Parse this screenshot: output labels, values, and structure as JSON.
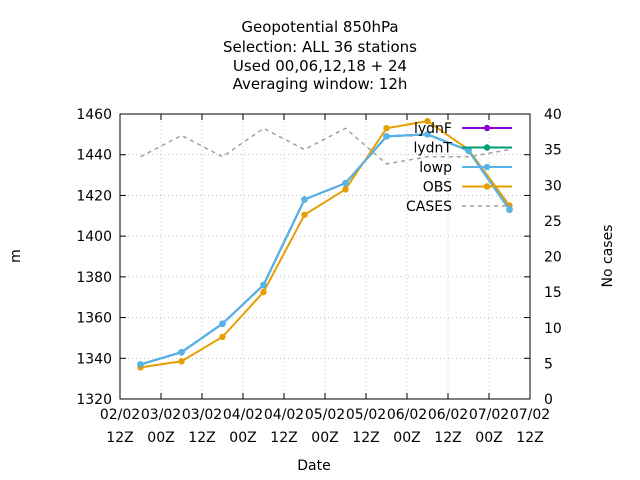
{
  "chart_data": {
    "type": "line",
    "title_lines": [
      "Geopotential 850hPa",
      "Selection: ALL      36 stations",
      "Used  00,06,12,18 + 24",
      "Averaging window: 12h"
    ],
    "xlabel": "Date",
    "ylabel": "m",
    "y2label": "No cases",
    "x_ticks": [
      {
        "line1": "02/02",
        "line2": "12Z"
      },
      {
        "line1": "03/02",
        "line2": "00Z"
      },
      {
        "line1": "03/02",
        "line2": "12Z"
      },
      {
        "line1": "04/02",
        "line2": "00Z"
      },
      {
        "line1": "04/02",
        "line2": "12Z"
      },
      {
        "line1": "05/02",
        "line2": "00Z"
      },
      {
        "line1": "05/02",
        "line2": "12Z"
      },
      {
        "line1": "06/02",
        "line2": "00Z"
      },
      {
        "line1": "06/02",
        "line2": "12Z"
      },
      {
        "line1": "07/02",
        "line2": "00Z"
      },
      {
        "line1": "07/02",
        "line2": "12Z"
      }
    ],
    "ylim": [
      1320,
      1460
    ],
    "yticks": [
      1320,
      1340,
      1360,
      1380,
      1400,
      1420,
      1440,
      1460
    ],
    "y2lim": [
      0,
      40
    ],
    "y2ticks": [
      0,
      5,
      10,
      15,
      20,
      25,
      30,
      35,
      40
    ],
    "x": [
      0.5,
      1.5,
      2.5,
      3.5,
      4.5,
      5.5,
      6.5,
      7.5,
      8.5,
      9.5
    ],
    "grid": true,
    "legend_position": "top-right",
    "series": [
      {
        "name": "lydnF",
        "color": "#9400d3",
        "axis": "y1",
        "dash": false,
        "values": [
          1337,
          1343,
          1357,
          1376,
          1418,
          1426,
          1449,
          1450,
          1442,
          1413
        ]
      },
      {
        "name": "lydnT",
        "color": "#009e73",
        "axis": "y1",
        "dash": false,
        "values": [
          1337,
          1343,
          1357,
          1376,
          1418,
          1426,
          1449,
          1450,
          1442,
          1413
        ]
      },
      {
        "name": "lowp",
        "color": "#56b4e9",
        "axis": "y1",
        "dash": false,
        "values": [
          1337,
          1343,
          1357,
          1376,
          1418,
          1426,
          1449,
          1450,
          1442,
          1413
        ]
      },
      {
        "name": "OBS",
        "color": "#e69f00",
        "axis": "y1",
        "dash": false,
        "values": [
          1335.5,
          1338.5,
          1350.5,
          1372.5,
          1410.5,
          1423,
          1453,
          1456.5,
          1442.5,
          1415
        ]
      },
      {
        "name": "CASES",
        "color": "#a0a0a0",
        "axis": "y2",
        "dash": true,
        "values": [
          34,
          37,
          34,
          38,
          35,
          38,
          33,
          34,
          34,
          35
        ]
      }
    ]
  }
}
